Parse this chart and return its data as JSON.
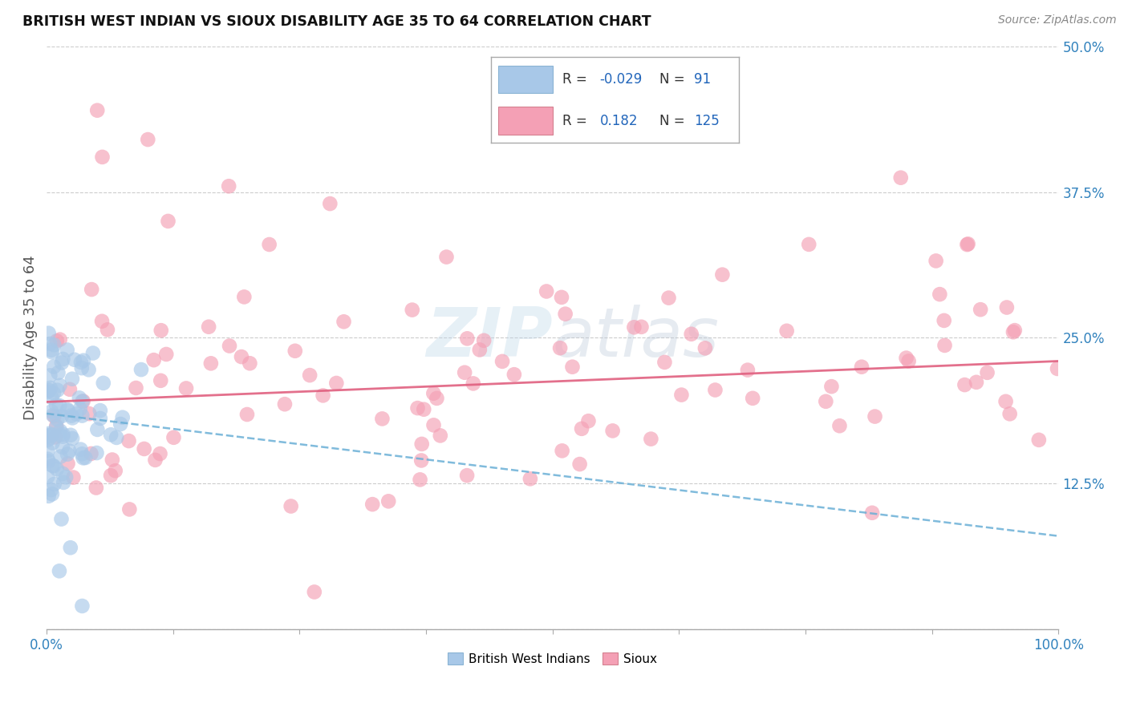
{
  "title": "BRITISH WEST INDIAN VS SIOUX DISABILITY AGE 35 TO 64 CORRELATION CHART",
  "source": "Source: ZipAtlas.com",
  "ylabel": "Disability Age 35 to 64",
  "xlim": [
    0.0,
    100.0
  ],
  "ylim": [
    0.0,
    50.0
  ],
  "color_blue": "#a8c8e8",
  "color_pink": "#f4a0b5",
  "color_trendline_blue": "#6aafd6",
  "color_trendline_pink": "#e06080",
  "background_color": "#ffffff",
  "grid_color": "#cccccc",
  "bwi_seed": 99,
  "sioux_seed": 77,
  "bwi_trend_x0": 0,
  "bwi_trend_x1": 100,
  "bwi_trend_y0": 18.5,
  "bwi_trend_y1": 8.0,
  "sioux_trend_x0": 0,
  "sioux_trend_x1": 100,
  "sioux_trend_y0": 19.5,
  "sioux_trend_y1": 23.0
}
